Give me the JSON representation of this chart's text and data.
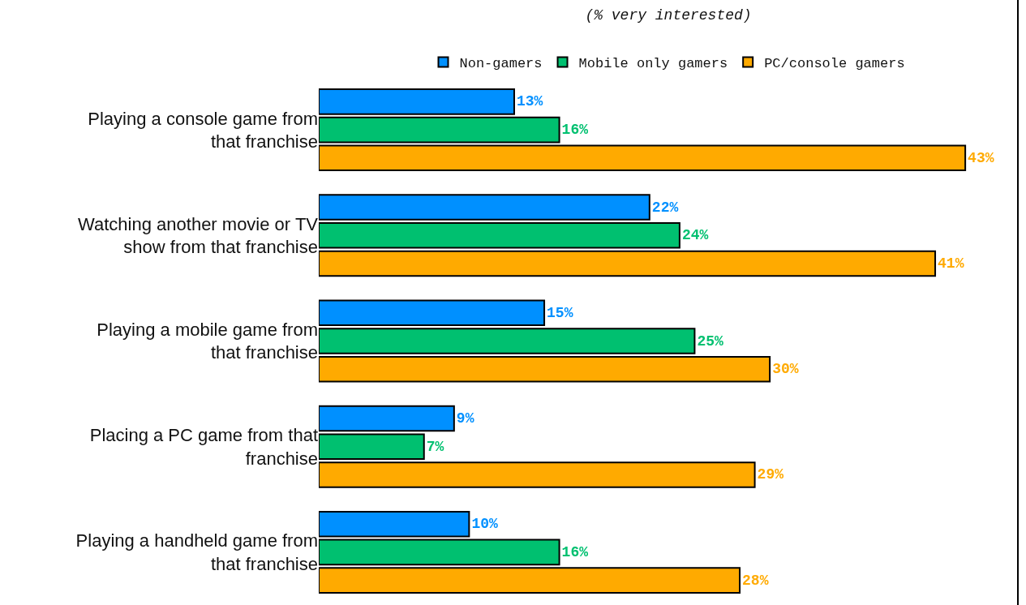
{
  "chart_data": {
    "type": "bar",
    "orientation": "horizontal",
    "subtitle": "(% very interested)",
    "categories": [
      "Playing a console game from that franchise",
      "Watching another movie or TV show from that franchise",
      "Playing a mobile game from that franchise",
      "Placing a PC game from that franchise",
      "Playing a handheld game from that franchise"
    ],
    "series": [
      {
        "name": "Non-gamers",
        "color": "#0090ff",
        "values": [
          13,
          22,
          15,
          9,
          10
        ],
        "value_labels": [
          "13%",
          "22%",
          "15%",
          "9%",
          "10%"
        ]
      },
      {
        "name": "Mobile only gamers",
        "color": "#00c070",
        "values": [
          16,
          24,
          25,
          7,
          16
        ],
        "value_labels": [
          "16%",
          "24%",
          "25%",
          "7%",
          "16%"
        ]
      },
      {
        "name": "PC/console gamers",
        "color": "#ffaa00",
        "values": [
          43,
          41,
          30,
          29,
          28
        ],
        "value_labels": [
          "43%",
          "41%",
          "30%",
          "29%",
          "28%"
        ]
      }
    ],
    "xlim": [
      0,
      46.5
    ],
    "legend": "top"
  }
}
